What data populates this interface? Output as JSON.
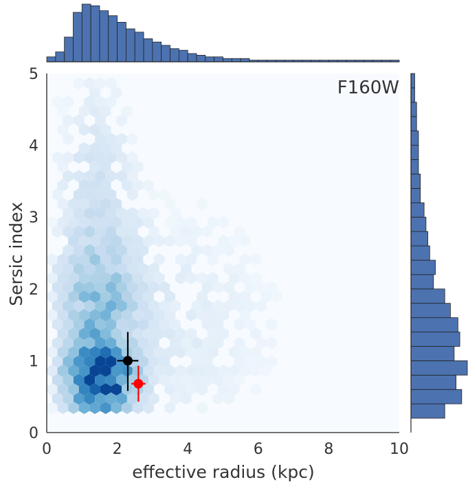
{
  "chart_data": {
    "type": "hexbin-joint",
    "band_label": "F160W",
    "xlabel": "effective radius (kpc)",
    "ylabel": "Sersic index",
    "xlim": [
      0,
      10
    ],
    "ylim": [
      0,
      5
    ],
    "x_ticks": [
      "0",
      "2",
      "4",
      "6",
      "8",
      "10"
    ],
    "y_ticks": [
      "0",
      "1",
      "2",
      "3",
      "4",
      "5"
    ],
    "colormap": "Blues",
    "hist_color": "#4c72b0",
    "hex_density_peak": {
      "x": 1.5,
      "y": 0.72
    },
    "points": [
      {
        "name": "black",
        "color": "#000000",
        "x": 2.3,
        "y": 1.0,
        "xerr": 0.3,
        "yerr_low": 0.42,
        "yerr_high": 0.4
      },
      {
        "name": "red",
        "color": "#ff0000",
        "x": 2.6,
        "y": 0.68,
        "xerr": 0.2,
        "yerr_low": 0.25,
        "yerr_high": 0.25
      }
    ],
    "x_marginal": {
      "bin_width": 0.25,
      "bin_start": 0.0,
      "counts": [
        3,
        6,
        15,
        30,
        35,
        34,
        31,
        28,
        24,
        20,
        18,
        14,
        12,
        10,
        8,
        7,
        5,
        4,
        3,
        3,
        2,
        2,
        2,
        1,
        1,
        1,
        1,
        1,
        1,
        1,
        1,
        1,
        1,
        1,
        1,
        1,
        1,
        1,
        1,
        1
      ]
    },
    "y_marginal": {
      "bin_width": 0.2,
      "bin_start": 0.2,
      "counts": [
        18,
        27,
        24,
        30,
        23,
        26,
        25,
        21,
        18,
        12,
        13,
        10,
        9,
        8,
        7,
        5,
        5,
        4,
        4,
        4,
        3,
        3,
        2,
        2
      ]
    }
  }
}
